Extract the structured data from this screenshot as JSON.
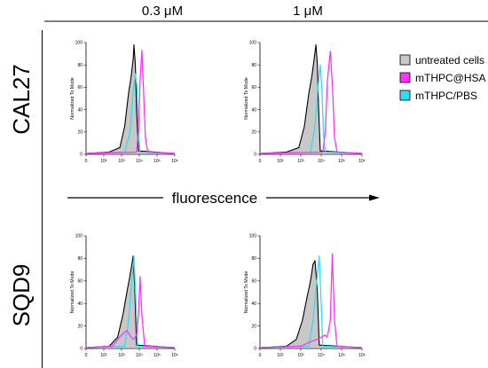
{
  "columns": [
    "0.3 μM",
    "1 μM"
  ],
  "rows": [
    "CAL27",
    "SQD9"
  ],
  "x_axis_note": "fluorescence",
  "legend": [
    {
      "label": "untreated cells",
      "color": "#c8c8c8",
      "border": "#000000"
    },
    {
      "label": "mTHPC@HSA",
      "color": "#ff33ff",
      "border": "#000000"
    },
    {
      "label": "mTHPC/PBS",
      "color": "#33ddee",
      "border": "#000000"
    }
  ],
  "chart_data": [
    {
      "type": "area",
      "row": "CAL27",
      "column": "0.3 μM",
      "ylabel": "Normalized To Mode",
      "ylim": [
        0,
        100
      ],
      "xscale": "log",
      "xlim": [
        0,
        1000000
      ],
      "yticks": [
        "0",
        "20",
        "40",
        "60",
        "80",
        "100"
      ],
      "xticks": [
        "0",
        "10²",
        "10³",
        "10⁴",
        "10⁵",
        "10⁶"
      ],
      "series": [
        {
          "name": "untreated cells",
          "peak_x": 5000,
          "peak_y": 98,
          "x": [
            200,
            800,
            1500,
            2500,
            3500,
            4500,
            5000,
            6000,
            7000,
            9000
          ],
          "y": [
            2,
            6,
            25,
            55,
            70,
            85,
            98,
            80,
            40,
            3
          ]
        },
        {
          "name": "mTHPC/PBS",
          "peak_x": 6000,
          "peak_y": 72,
          "x": [
            1500,
            3000,
            4500,
            6000,
            7500,
            9000,
            11000
          ],
          "y": [
            2,
            20,
            55,
            72,
            60,
            20,
            2
          ]
        },
        {
          "name": "mTHPC@HSA",
          "peak_x": 14000,
          "peak_y": 93,
          "x": [
            7000,
            9000,
            11000,
            14000,
            17000,
            22000,
            30000
          ],
          "y": [
            2,
            20,
            65,
            93,
            60,
            15,
            2
          ]
        }
      ]
    },
    {
      "type": "area",
      "row": "CAL27",
      "column": "1 μM",
      "ylabel": "Normalized To Mode",
      "ylim": [
        0,
        100
      ],
      "xscale": "log",
      "xlim": [
        0,
        1000000
      ],
      "yticks": [
        "0",
        "20",
        "40",
        "60",
        "80",
        "100"
      ],
      "xticks": [
        "0",
        "10²",
        "10³",
        "10⁴",
        "10⁵",
        "10⁶"
      ],
      "series": [
        {
          "name": "untreated cells",
          "peak_x": 5500,
          "peak_y": 98,
          "x": [
            200,
            800,
            1500,
            2500,
            3500,
            4500,
            5500,
            6500,
            7500,
            9000
          ],
          "y": [
            2,
            6,
            25,
            55,
            70,
            85,
            98,
            80,
            40,
            3
          ]
        },
        {
          "name": "mTHPC/PBS",
          "peak_x": 9000,
          "peak_y": 80,
          "x": [
            3000,
            5000,
            7000,
            9000,
            11000,
            13000,
            16000
          ],
          "y": [
            2,
            25,
            60,
            80,
            55,
            18,
            2
          ]
        },
        {
          "name": "mTHPC@HSA",
          "peak_x": 28000,
          "peak_y": 92,
          "x": [
            12000,
            16000,
            20000,
            28000,
            36000,
            45000,
            60000
          ],
          "y": [
            2,
            20,
            65,
            92,
            60,
            15,
            2
          ]
        }
      ]
    },
    {
      "type": "area",
      "row": "SQD9",
      "column": "0.3 μM",
      "ylabel": "Normalized To Mode",
      "ylim": [
        0,
        100
      ],
      "xscale": "log",
      "xlim": [
        0,
        1000000
      ],
      "yticks": [
        "0",
        "20",
        "40",
        "60",
        "80",
        "100"
      ],
      "xticks": [
        "0",
        "10²",
        "10³",
        "10⁴",
        "10⁵",
        "10⁶"
      ],
      "series": [
        {
          "name": "untreated cells",
          "peak_x": 4500,
          "peak_y": 82,
          "x": [
            200,
            600,
            1200,
            2000,
            3000,
            4500,
            5500,
            7000
          ],
          "y": [
            2,
            10,
            30,
            50,
            65,
            82,
            55,
            3
          ]
        },
        {
          "name": "mTHPC/PBS",
          "peak_x": 5000,
          "peak_y": 82,
          "x": [
            1500,
            2500,
            3500,
            5000,
            6500,
            8000
          ],
          "y": [
            2,
            25,
            55,
            82,
            40,
            2
          ]
        },
        {
          "name": "mTHPC@HSA",
          "peak_x": 11000,
          "peak_y": 64,
          "x": [
            300,
            1000,
            2000,
            3500,
            5000,
            7000,
            9000,
            11000,
            14000,
            20000
          ],
          "y": [
            2,
            12,
            16,
            10,
            8,
            12,
            30,
            64,
            30,
            2
          ]
        }
      ]
    },
    {
      "type": "area",
      "row": "SQD9",
      "column": "1 μM",
      "ylabel": "Normalized To Mode",
      "ylim": [
        0,
        100
      ],
      "xscale": "log",
      "xlim": [
        0,
        1000000
      ],
      "yticks": [
        "0",
        "20",
        "40",
        "60",
        "80",
        "100"
      ],
      "xticks": [
        "0",
        "10²",
        "10³",
        "10⁴",
        "10⁵",
        "10⁶"
      ],
      "series": [
        {
          "name": "untreated cells",
          "peak_x": 5000,
          "peak_y": 78,
          "x": [
            200,
            600,
            1200,
            2000,
            3000,
            4000,
            5000,
            6500,
            8000
          ],
          "y": [
            2,
            8,
            25,
            45,
            60,
            75,
            78,
            50,
            3
          ]
        },
        {
          "name": "mTHPC/PBS",
          "peak_x": 8000,
          "peak_y": 82,
          "x": [
            2500,
            4000,
            6000,
            8000,
            10000,
            12000
          ],
          "y": [
            2,
            25,
            60,
            82,
            40,
            2
          ]
        },
        {
          "name": "mTHPC@HSA",
          "peak_x": 35000,
          "peak_y": 84,
          "x": [
            1000,
            3000,
            6000,
            10000,
            15000,
            20000,
            28000,
            35000,
            45000,
            60000
          ],
          "y": [
            2,
            6,
            8,
            10,
            12,
            10,
            25,
            84,
            25,
            2
          ]
        }
      ]
    }
  ]
}
